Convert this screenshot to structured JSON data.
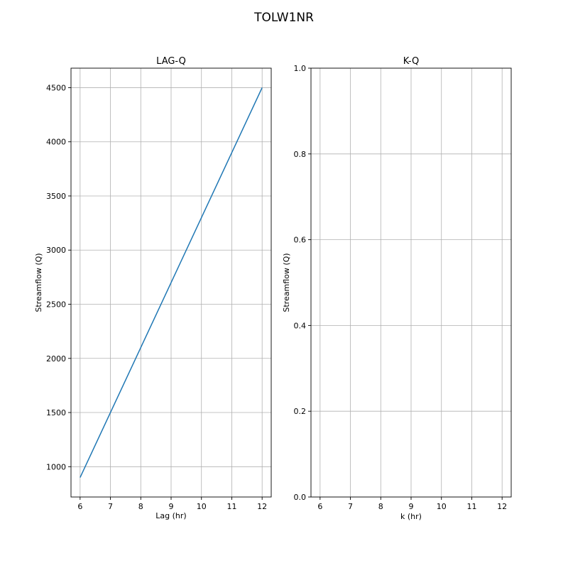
{
  "figure": {
    "title": "TOLW1NR"
  },
  "chart_data": [
    {
      "type": "line",
      "title": "LAG-Q",
      "xlabel": "Lag (hr)",
      "ylabel": "Streamflow (Q)",
      "xlim": [
        5.7,
        12.3
      ],
      "ylim": [
        720,
        4680
      ],
      "xticks": [
        6,
        7,
        8,
        9,
        10,
        11,
        12
      ],
      "yticks": [
        1000,
        1500,
        2000,
        2500,
        3000,
        3500,
        4000,
        4500
      ],
      "grid": true,
      "series": [
        {
          "x": [
            6,
            12
          ],
          "y": [
            900,
            4500
          ],
          "color": "#1f77b4"
        }
      ]
    },
    {
      "type": "line",
      "title": "K-Q",
      "xlabel": "k (hr)",
      "ylabel": "Streamflow (Q)",
      "xlim": [
        5.7,
        12.3
      ],
      "ylim": [
        0.0,
        1.0
      ],
      "xticks": [
        6,
        7,
        8,
        9,
        10,
        11,
        12
      ],
      "yticks": [
        0.0,
        0.2,
        0.4,
        0.6,
        0.8,
        1.0
      ],
      "ytick_format": 1,
      "grid": true,
      "series": []
    }
  ]
}
